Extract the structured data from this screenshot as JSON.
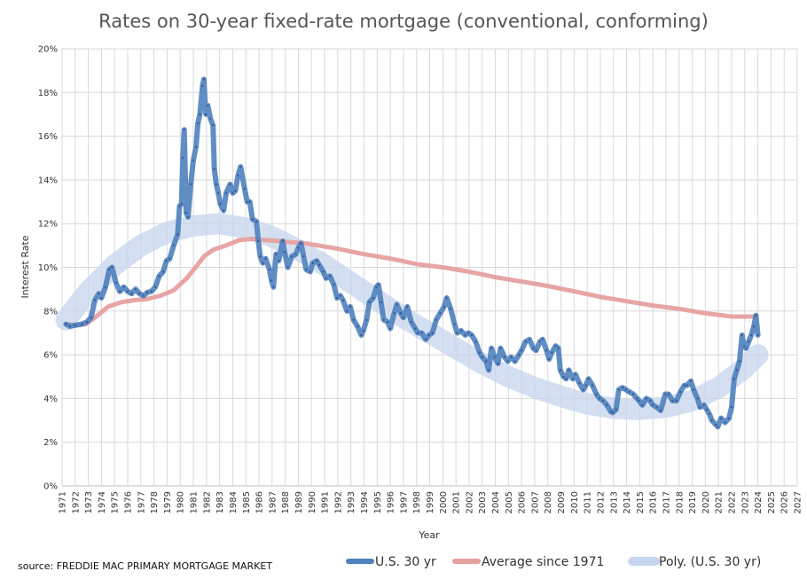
{
  "chart_data": {
    "type": "line",
    "title": "Rates on 30-year fixed-rate mortgage (conventional, conforming)",
    "xlabel": "Year",
    "ylabel": "Interest Rate",
    "source": "source: FREDDIE MAC PRIMARY MORTGAGE MARKET",
    "xlim": [
      1971,
      2027
    ],
    "ylim": [
      0,
      20
    ],
    "grid": true,
    "legend_position": "bottom-right",
    "x_ticks": [
      "1971",
      "1972",
      "1973",
      "1974",
      "1975",
      "1976",
      "1977",
      "1978",
      "1979",
      "1980",
      "1981",
      "1982",
      "1983",
      "1984",
      "1985",
      "1986",
      "1987",
      "1988",
      "1989",
      "1990",
      "1991",
      "1992",
      "1993",
      "1994",
      "1995",
      "1996",
      "1997",
      "1998",
      "1999",
      "2000",
      "2001",
      "2002",
      "2003",
      "2004",
      "2005",
      "2006",
      "2007",
      "2008",
      "2009",
      "2010",
      "2011",
      "2012",
      "2013",
      "2014",
      "2015",
      "2016",
      "2017",
      "2018",
      "2019",
      "2020",
      "2021",
      "2022",
      "2023",
      "2024",
      "2025",
      "2026",
      "2027"
    ],
    "y_ticks": [
      "0%",
      "2%",
      "4%",
      "6%",
      "8%",
      "10%",
      "12%",
      "14%",
      "16%",
      "18%",
      "20%"
    ],
    "series": [
      {
        "name": "U.S. 30 yr",
        "color": "#4f81bd",
        "points": [
          [
            1971.3,
            7.4
          ],
          [
            1971.6,
            7.3
          ],
          [
            1972.0,
            7.35
          ],
          [
            1972.5,
            7.4
          ],
          [
            1972.9,
            7.5
          ],
          [
            1973.2,
            7.7
          ],
          [
            1973.5,
            8.5
          ],
          [
            1973.8,
            8.8
          ],
          [
            1974.0,
            8.6
          ],
          [
            1974.3,
            9.1
          ],
          [
            1974.6,
            9.9
          ],
          [
            1974.8,
            10.0
          ],
          [
            1975.1,
            9.3
          ],
          [
            1975.4,
            8.9
          ],
          [
            1975.7,
            9.1
          ],
          [
            1976.0,
            8.9
          ],
          [
            1976.3,
            8.8
          ],
          [
            1976.6,
            9.0
          ],
          [
            1976.9,
            8.8
          ],
          [
            1977.2,
            8.7
          ],
          [
            1977.5,
            8.85
          ],
          [
            1977.8,
            8.9
          ],
          [
            1978.1,
            9.1
          ],
          [
            1978.4,
            9.6
          ],
          [
            1978.7,
            9.8
          ],
          [
            1978.95,
            10.3
          ],
          [
            1979.2,
            10.4
          ],
          [
            1979.5,
            11.0
          ],
          [
            1979.8,
            11.5
          ],
          [
            1979.95,
            12.8
          ],
          [
            1980.1,
            12.9
          ],
          [
            1980.2,
            15.0
          ],
          [
            1980.3,
            16.3
          ],
          [
            1980.45,
            12.5
          ],
          [
            1980.6,
            12.3
          ],
          [
            1980.8,
            13.8
          ],
          [
            1981.0,
            14.9
          ],
          [
            1981.2,
            15.5
          ],
          [
            1981.35,
            16.6
          ],
          [
            1981.5,
            17.0
          ],
          [
            1981.7,
            18.3
          ],
          [
            1981.8,
            18.6
          ],
          [
            1981.95,
            17.0
          ],
          [
            1982.1,
            17.4
          ],
          [
            1982.3,
            16.8
          ],
          [
            1982.5,
            16.5
          ],
          [
            1982.6,
            14.5
          ],
          [
            1982.75,
            13.8
          ],
          [
            1982.9,
            13.4
          ],
          [
            1983.05,
            12.9
          ],
          [
            1983.3,
            12.6
          ],
          [
            1983.5,
            13.4
          ],
          [
            1983.8,
            13.8
          ],
          [
            1984.0,
            13.4
          ],
          [
            1984.2,
            13.5
          ],
          [
            1984.4,
            14.2
          ],
          [
            1984.6,
            14.6
          ],
          [
            1984.9,
            13.6
          ],
          [
            1985.1,
            13.0
          ],
          [
            1985.3,
            13.0
          ],
          [
            1985.5,
            12.2
          ],
          [
            1985.8,
            12.1
          ],
          [
            1985.95,
            11.2
          ],
          [
            1986.1,
            10.5
          ],
          [
            1986.3,
            10.2
          ],
          [
            1986.5,
            10.4
          ],
          [
            1986.8,
            9.9
          ],
          [
            1986.95,
            9.4
          ],
          [
            1987.1,
            9.1
          ],
          [
            1987.3,
            10.6
          ],
          [
            1987.5,
            10.3
          ],
          [
            1987.8,
            11.2
          ],
          [
            1987.95,
            10.7
          ],
          [
            1988.2,
            10.0
          ],
          [
            1988.5,
            10.5
          ],
          [
            1988.8,
            10.6
          ],
          [
            1989.0,
            10.9
          ],
          [
            1989.2,
            11.1
          ],
          [
            1989.4,
            10.5
          ],
          [
            1989.6,
            9.9
          ],
          [
            1989.9,
            9.8
          ],
          [
            1990.1,
            10.2
          ],
          [
            1990.4,
            10.3
          ],
          [
            1990.6,
            10.1
          ],
          [
            1990.9,
            9.8
          ],
          [
            1991.1,
            9.5
          ],
          [
            1991.4,
            9.6
          ],
          [
            1991.7,
            9.2
          ],
          [
            1991.95,
            8.6
          ],
          [
            1992.2,
            8.7
          ],
          [
            1992.4,
            8.5
          ],
          [
            1992.7,
            8.0
          ],
          [
            1992.95,
            8.2
          ],
          [
            1993.2,
            7.6
          ],
          [
            1993.5,
            7.3
          ],
          [
            1993.8,
            6.9
          ],
          [
            1993.95,
            7.1
          ],
          [
            1994.2,
            7.6
          ],
          [
            1994.4,
            8.4
          ],
          [
            1994.7,
            8.6
          ],
          [
            1994.95,
            9.1
          ],
          [
            1995.1,
            9.2
          ],
          [
            1995.3,
            8.4
          ],
          [
            1995.5,
            7.6
          ],
          [
            1995.8,
            7.5
          ],
          [
            1996.0,
            7.2
          ],
          [
            1996.3,
            7.9
          ],
          [
            1996.5,
            8.3
          ],
          [
            1996.8,
            7.9
          ],
          [
            1997.0,
            7.7
          ],
          [
            1997.3,
            8.2
          ],
          [
            1997.6,
            7.5
          ],
          [
            1997.9,
            7.2
          ],
          [
            1998.1,
            7.0
          ],
          [
            1998.4,
            7.0
          ],
          [
            1998.7,
            6.7
          ],
          [
            1998.95,
            6.9
          ],
          [
            1999.2,
            7.0
          ],
          [
            1999.5,
            7.6
          ],
          [
            1999.8,
            7.9
          ],
          [
            2000.1,
            8.2
          ],
          [
            2000.3,
            8.6
          ],
          [
            2000.6,
            8.1
          ],
          [
            2000.9,
            7.4
          ],
          [
            2001.1,
            7.0
          ],
          [
            2001.4,
            7.1
          ],
          [
            2001.7,
            6.9
          ],
          [
            2001.95,
            7.0
          ],
          [
            2002.2,
            6.9
          ],
          [
            2002.5,
            6.6
          ],
          [
            2002.8,
            6.1
          ],
          [
            2003.0,
            5.9
          ],
          [
            2003.3,
            5.7
          ],
          [
            2003.5,
            5.3
          ],
          [
            2003.7,
            6.3
          ],
          [
            2003.95,
            5.9
          ],
          [
            2004.2,
            5.6
          ],
          [
            2004.4,
            6.3
          ],
          [
            2004.7,
            5.9
          ],
          [
            2004.95,
            5.7
          ],
          [
            2005.2,
            5.9
          ],
          [
            2005.5,
            5.7
          ],
          [
            2005.8,
            6.0
          ],
          [
            2006.0,
            6.2
          ],
          [
            2006.3,
            6.6
          ],
          [
            2006.6,
            6.7
          ],
          [
            2006.9,
            6.3
          ],
          [
            2007.1,
            6.2
          ],
          [
            2007.4,
            6.6
          ],
          [
            2007.6,
            6.7
          ],
          [
            2007.9,
            6.2
          ],
          [
            2008.1,
            5.8
          ],
          [
            2008.3,
            6.1
          ],
          [
            2008.6,
            6.4
          ],
          [
            2008.8,
            6.3
          ],
          [
            2008.95,
            5.3
          ],
          [
            2009.2,
            5.0
          ],
          [
            2009.4,
            4.9
          ],
          [
            2009.6,
            5.3
          ],
          [
            2009.9,
            4.9
          ],
          [
            2010.1,
            5.1
          ],
          [
            2010.4,
            4.7
          ],
          [
            2010.7,
            4.4
          ],
          [
            2010.9,
            4.6
          ],
          [
            2011.1,
            4.9
          ],
          [
            2011.4,
            4.6
          ],
          [
            2011.7,
            4.2
          ],
          [
            2011.95,
            4.0
          ],
          [
            2012.2,
            3.9
          ],
          [
            2012.5,
            3.7
          ],
          [
            2012.8,
            3.4
          ],
          [
            2012.95,
            3.35
          ],
          [
            2013.2,
            3.5
          ],
          [
            2013.4,
            4.4
          ],
          [
            2013.7,
            4.5
          ],
          [
            2013.95,
            4.4
          ],
          [
            2014.2,
            4.3
          ],
          [
            2014.5,
            4.2
          ],
          [
            2014.8,
            4.0
          ],
          [
            2014.95,
            3.9
          ],
          [
            2015.2,
            3.7
          ],
          [
            2015.5,
            4.0
          ],
          [
            2015.8,
            3.9
          ],
          [
            2016.0,
            3.7
          ],
          [
            2016.3,
            3.6
          ],
          [
            2016.6,
            3.45
          ],
          [
            2016.95,
            4.2
          ],
          [
            2017.2,
            4.2
          ],
          [
            2017.5,
            3.9
          ],
          [
            2017.8,
            3.9
          ],
          [
            2018.1,
            4.3
          ],
          [
            2018.4,
            4.6
          ],
          [
            2018.6,
            4.6
          ],
          [
            2018.9,
            4.8
          ],
          [
            2019.1,
            4.4
          ],
          [
            2019.4,
            4.0
          ],
          [
            2019.6,
            3.6
          ],
          [
            2019.9,
            3.7
          ],
          [
            2020.1,
            3.5
          ],
          [
            2020.3,
            3.3
          ],
          [
            2020.5,
            3.0
          ],
          [
            2020.8,
            2.8
          ],
          [
            2020.95,
            2.7
          ],
          [
            2021.2,
            3.1
          ],
          [
            2021.5,
            2.9
          ],
          [
            2021.8,
            3.1
          ],
          [
            2022.0,
            3.6
          ],
          [
            2022.2,
            4.9
          ],
          [
            2022.4,
            5.3
          ],
          [
            2022.6,
            5.7
          ],
          [
            2022.8,
            6.9
          ],
          [
            2022.95,
            6.4
          ],
          [
            2023.1,
            6.3
          ],
          [
            2023.3,
            6.6
          ],
          [
            2023.5,
            6.9
          ],
          [
            2023.7,
            7.3
          ],
          [
            2023.85,
            7.8
          ],
          [
            2024.0,
            6.9
          ]
        ]
      },
      {
        "name": "Average since 1971",
        "color": "#e6a0a0",
        "points": [
          [
            1971.3,
            7.4
          ],
          [
            1972.0,
            7.35
          ],
          [
            1972.8,
            7.4
          ],
          [
            1973.5,
            7.7
          ],
          [
            1974.5,
            8.2
          ],
          [
            1975.5,
            8.4
          ],
          [
            1976.5,
            8.5
          ],
          [
            1977.5,
            8.55
          ],
          [
            1978.5,
            8.7
          ],
          [
            1979.5,
            8.95
          ],
          [
            1980.5,
            9.5
          ],
          [
            1981.3,
            10.1
          ],
          [
            1981.8,
            10.5
          ],
          [
            1982.5,
            10.8
          ],
          [
            1983.5,
            11.0
          ],
          [
            1984.5,
            11.25
          ],
          [
            1985.5,
            11.3
          ],
          [
            1986.5,
            11.25
          ],
          [
            1987.5,
            11.2
          ],
          [
            1988.5,
            11.15
          ],
          [
            1989.5,
            11.1
          ],
          [
            1990.5,
            11.0
          ],
          [
            1992.0,
            10.85
          ],
          [
            1994.0,
            10.6
          ],
          [
            1996.0,
            10.4
          ],
          [
            1998.0,
            10.15
          ],
          [
            2000.0,
            10.0
          ],
          [
            2002.0,
            9.8
          ],
          [
            2004.0,
            9.55
          ],
          [
            2006.0,
            9.35
          ],
          [
            2008.0,
            9.15
          ],
          [
            2010.0,
            8.9
          ],
          [
            2012.0,
            8.65
          ],
          [
            2014.0,
            8.45
          ],
          [
            2016.0,
            8.25
          ],
          [
            2018.0,
            8.1
          ],
          [
            2020.0,
            7.9
          ],
          [
            2022.0,
            7.75
          ],
          [
            2023.85,
            7.75
          ]
        ]
      },
      {
        "name": "Poly. (U.S. 30 yr)",
        "color": "#c6d6ec",
        "points": [
          [
            1971.3,
            7.6
          ],
          [
            1973.0,
            8.9
          ],
          [
            1975.0,
            10.1
          ],
          [
            1977.0,
            11.0
          ],
          [
            1979.0,
            11.6
          ],
          [
            1981.0,
            11.9
          ],
          [
            1983.0,
            12.0
          ],
          [
            1985.0,
            11.8
          ],
          [
            1987.0,
            11.4
          ],
          [
            1989.0,
            10.8
          ],
          [
            1991.0,
            10.1
          ],
          [
            1993.0,
            9.3
          ],
          [
            1995.0,
            8.5
          ],
          [
            1997.0,
            7.7
          ],
          [
            1999.0,
            7.0
          ],
          [
            2001.0,
            6.3
          ],
          [
            2003.0,
            5.6
          ],
          [
            2005.0,
            5.0
          ],
          [
            2007.0,
            4.5
          ],
          [
            2009.0,
            4.1
          ],
          [
            2011.0,
            3.75
          ],
          [
            2013.0,
            3.55
          ],
          [
            2015.0,
            3.5
          ],
          [
            2017.0,
            3.6
          ],
          [
            2019.0,
            3.9
          ],
          [
            2021.0,
            4.5
          ],
          [
            2023.0,
            5.4
          ],
          [
            2024.0,
            6.0
          ]
        ]
      }
    ]
  }
}
